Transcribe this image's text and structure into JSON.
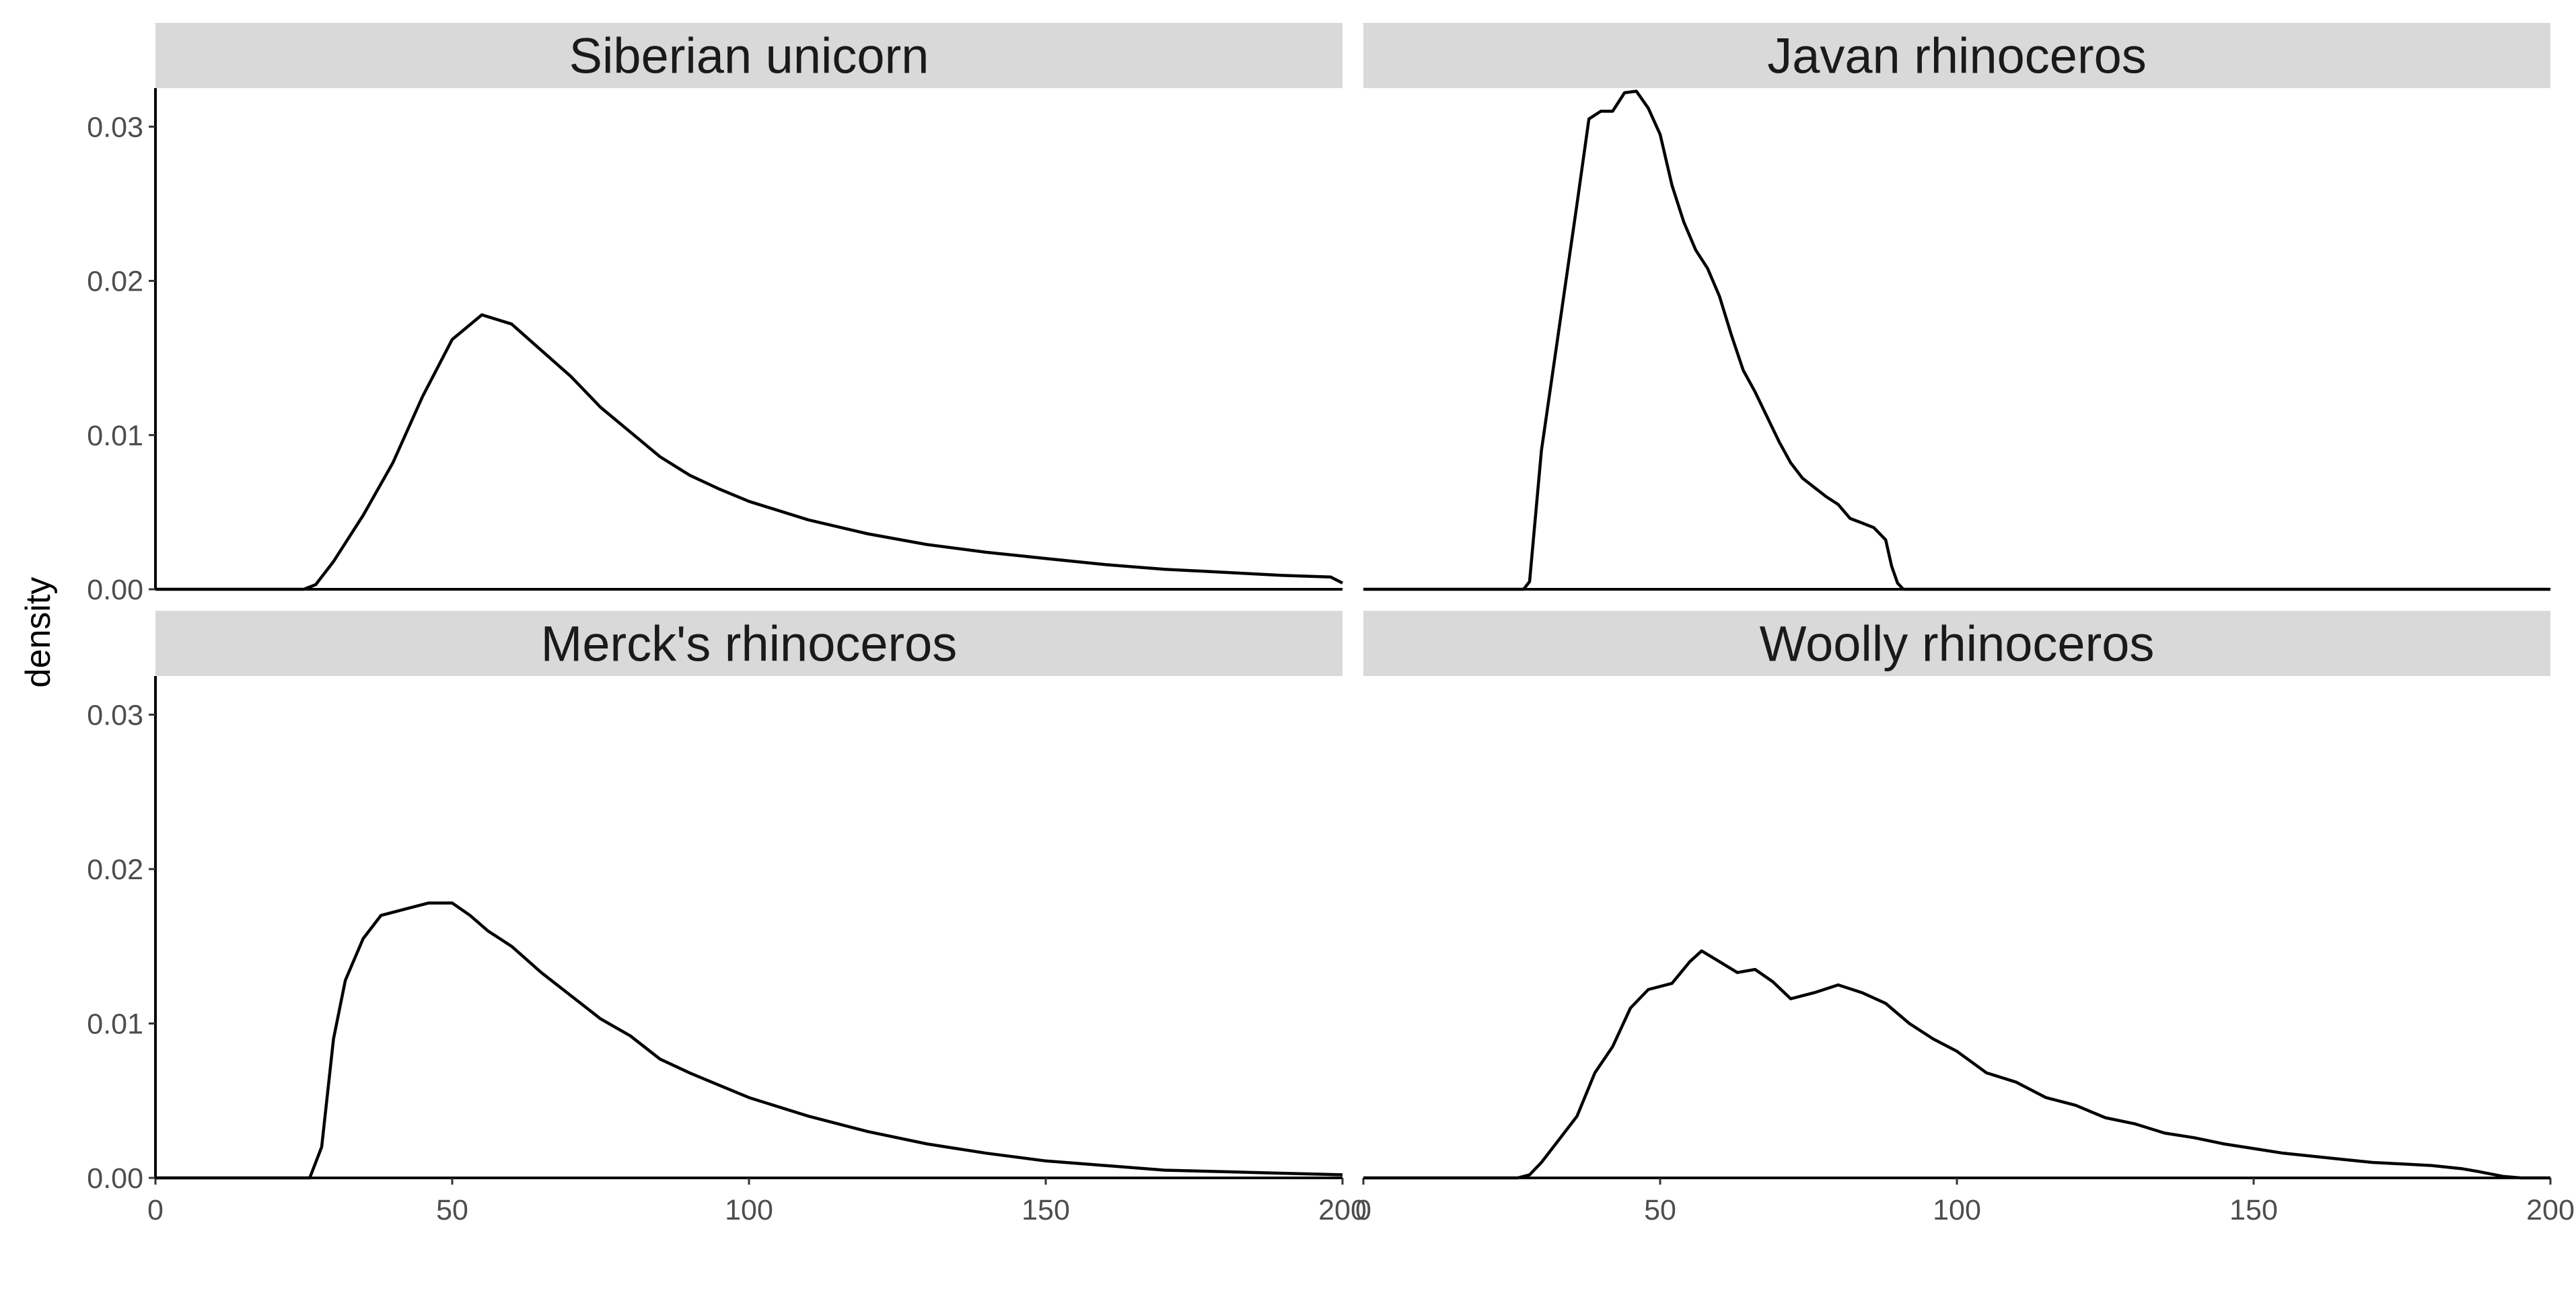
{
  "chart_data": {
    "type": "line",
    "subtype": "density",
    "facets": 4,
    "ylabel": "density",
    "xlabel": "",
    "xlim": [
      0,
      200
    ],
    "ylim": [
      0,
      0.0325
    ],
    "x_ticks": [
      0,
      50,
      100,
      150,
      200
    ],
    "x_tick_labels": [
      "0",
      "50",
      "100",
      "150",
      "200"
    ],
    "y_ticks": [
      0,
      0.01,
      0.02,
      0.03
    ],
    "y_tick_labels": [
      "0.00",
      "0.01",
      "0.02",
      "0.03"
    ],
    "grid": false,
    "panels": [
      {
        "title": "Siberian unicorn",
        "points": [
          [
            0,
            0
          ],
          [
            25,
            0
          ],
          [
            27,
            0.0003
          ],
          [
            30,
            0.0018
          ],
          [
            35,
            0.0048
          ],
          [
            40,
            0.0082
          ],
          [
            45,
            0.0125
          ],
          [
            50,
            0.0162
          ],
          [
            55,
            0.0178
          ],
          [
            60,
            0.0172
          ],
          [
            65,
            0.0155
          ],
          [
            70,
            0.0138
          ],
          [
            75,
            0.0118
          ],
          [
            80,
            0.0102
          ],
          [
            85,
            0.0086
          ],
          [
            90,
            0.0074
          ],
          [
            95,
            0.0065
          ],
          [
            100,
            0.0057
          ],
          [
            110,
            0.0045
          ],
          [
            120,
            0.0036
          ],
          [
            130,
            0.0029
          ],
          [
            140,
            0.0024
          ],
          [
            150,
            0.002
          ],
          [
            160,
            0.0016
          ],
          [
            170,
            0.0013
          ],
          [
            180,
            0.0011
          ],
          [
            190,
            0.0009
          ],
          [
            198,
            0.0008
          ],
          [
            200,
            0.0004
          ]
        ]
      },
      {
        "title": "Javan rhinoceros",
        "points": [
          [
            0,
            0
          ],
          [
            27,
            0
          ],
          [
            28,
            0.0005
          ],
          [
            30,
            0.009
          ],
          [
            33,
            0.017
          ],
          [
            36,
            0.025
          ],
          [
            38,
            0.0305
          ],
          [
            40,
            0.031
          ],
          [
            42,
            0.031
          ],
          [
            44,
            0.0322
          ],
          [
            46,
            0.0323
          ],
          [
            48,
            0.0312
          ],
          [
            50,
            0.0295
          ],
          [
            52,
            0.0262
          ],
          [
            54,
            0.0238
          ],
          [
            56,
            0.022
          ],
          [
            58,
            0.0208
          ],
          [
            60,
            0.019
          ],
          [
            62,
            0.0165
          ],
          [
            64,
            0.0142
          ],
          [
            66,
            0.0128
          ],
          [
            68,
            0.0112
          ],
          [
            70,
            0.0096
          ],
          [
            72,
            0.0082
          ],
          [
            74,
            0.0072
          ],
          [
            76,
            0.0066
          ],
          [
            78,
            0.006
          ],
          [
            80,
            0.0055
          ],
          [
            82,
            0.0046
          ],
          [
            84,
            0.0043
          ],
          [
            86,
            0.004
          ],
          [
            88,
            0.0032
          ],
          [
            89,
            0.0015
          ],
          [
            90,
            0.0004
          ],
          [
            91,
            0
          ],
          [
            200,
            0
          ]
        ]
      },
      {
        "title": "Merck's rhinoceros",
        "points": [
          [
            0,
            0
          ],
          [
            26,
            0
          ],
          [
            28,
            0.002
          ],
          [
            30,
            0.009
          ],
          [
            32,
            0.0128
          ],
          [
            35,
            0.0155
          ],
          [
            38,
            0.017
          ],
          [
            42,
            0.0174
          ],
          [
            46,
            0.0178
          ],
          [
            50,
            0.0178
          ],
          [
            53,
            0.017
          ],
          [
            56,
            0.016
          ],
          [
            60,
            0.015
          ],
          [
            65,
            0.0133
          ],
          [
            70,
            0.0118
          ],
          [
            75,
            0.0103
          ],
          [
            80,
            0.0092
          ],
          [
            85,
            0.0077
          ],
          [
            90,
            0.0068
          ],
          [
            95,
            0.006
          ],
          [
            100,
            0.0052
          ],
          [
            110,
            0.004
          ],
          [
            120,
            0.003
          ],
          [
            130,
            0.0022
          ],
          [
            140,
            0.0016
          ],
          [
            150,
            0.0011
          ],
          [
            160,
            0.0008
          ],
          [
            170,
            0.0005
          ],
          [
            180,
            0.0004
          ],
          [
            190,
            0.0003
          ],
          [
            200,
            0.0002
          ]
        ]
      },
      {
        "title": "Woolly rhinoceros",
        "points": [
          [
            0,
            0
          ],
          [
            26,
            0
          ],
          [
            28,
            0.0002
          ],
          [
            30,
            0.001
          ],
          [
            33,
            0.0025
          ],
          [
            36,
            0.004
          ],
          [
            39,
            0.0068
          ],
          [
            42,
            0.0085
          ],
          [
            45,
            0.011
          ],
          [
            48,
            0.0122
          ],
          [
            52,
            0.0126
          ],
          [
            55,
            0.014
          ],
          [
            57,
            0.0147
          ],
          [
            60,
            0.014
          ],
          [
            63,
            0.0133
          ],
          [
            66,
            0.0135
          ],
          [
            69,
            0.0127
          ],
          [
            72,
            0.0116
          ],
          [
            76,
            0.012
          ],
          [
            80,
            0.0125
          ],
          [
            84,
            0.012
          ],
          [
            88,
            0.0113
          ],
          [
            92,
            0.01
          ],
          [
            96,
            0.009
          ],
          [
            100,
            0.0082
          ],
          [
            105,
            0.0068
          ],
          [
            110,
            0.0062
          ],
          [
            115,
            0.0052
          ],
          [
            120,
            0.0047
          ],
          [
            125,
            0.0039
          ],
          [
            130,
            0.0035
          ],
          [
            135,
            0.0029
          ],
          [
            140,
            0.0026
          ],
          [
            145,
            0.0022
          ],
          [
            150,
            0.0019
          ],
          [
            155,
            0.0016
          ],
          [
            160,
            0.0014
          ],
          [
            165,
            0.0012
          ],
          [
            170,
            0.001
          ],
          [
            175,
            0.0009
          ],
          [
            180,
            0.0008
          ],
          [
            185,
            0.0006
          ],
          [
            188,
            0.0004
          ],
          [
            192,
            0.0001
          ],
          [
            195,
            0
          ],
          [
            200,
            0
          ]
        ]
      }
    ]
  }
}
